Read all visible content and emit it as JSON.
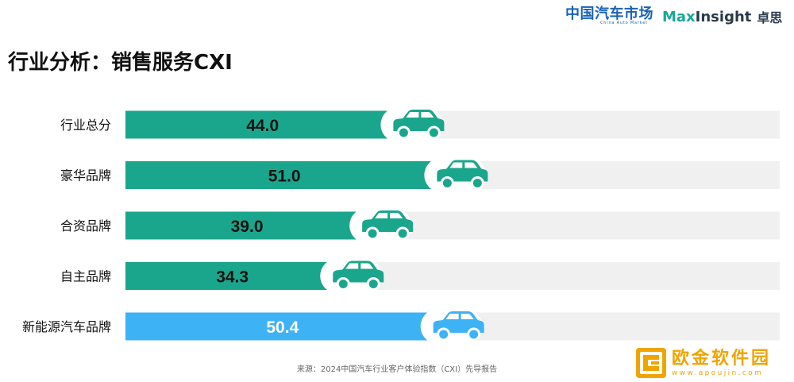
{
  "header": {
    "logo_china_auto_market": "中国汽车市场",
    "logo_china_auto_market_sub": "China Auto Market",
    "logo_maxinsight_max": "Max",
    "logo_maxinsight_insight": "Insight",
    "logo_maxinsight_cn": "卓思"
  },
  "page": {
    "title": "行业分析：销售服务CXI"
  },
  "colors": {
    "teal_bar": "#1aa68c",
    "blue_bar": "#3db2f5",
    "track": "#f0f0f0",
    "car_teal": "#1aa68c",
    "car_blue": "#3db2f5"
  },
  "chart_data": {
    "type": "bar",
    "orientation": "horizontal",
    "title": "行业分析：销售服务CXI",
    "categories": [
      "行业总分",
      "豪华品牌",
      "合资品牌",
      "自主品牌",
      "新能源汽车品牌"
    ],
    "values": [
      44.0,
      51.0,
      39.0,
      34.3,
      50.4
    ],
    "value_labels": [
      "44.0",
      "51.0",
      "39.0",
      "34.3",
      "50.4"
    ],
    "bar_colors": [
      "#1aa68c",
      "#1aa68c",
      "#1aa68c",
      "#1aa68c",
      "#3db2f5"
    ],
    "label_colors": [
      "#111111",
      "#111111",
      "#111111",
      "#111111",
      "#ffffff"
    ],
    "xlim": [
      0,
      100
    ],
    "xlabel": "",
    "ylabel": "",
    "grid": false,
    "legend": "none"
  },
  "footer": {
    "source": "来源：2024中国汽车行业客户体验指数（CXI）先导报告"
  },
  "watermark": {
    "title": "欧金软件园",
    "url": "www.apoujin.com"
  }
}
